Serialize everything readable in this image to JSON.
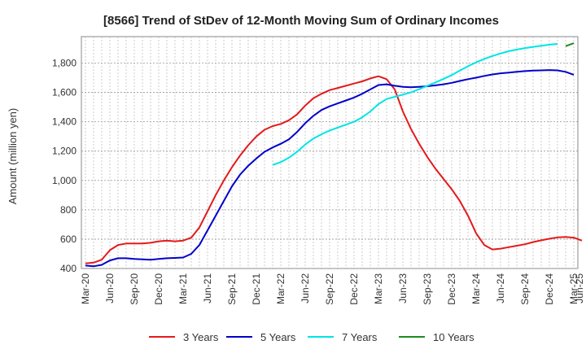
{
  "chart_data": {
    "type": "line",
    "title": "[8566]  Trend of StDev of 12-Month Moving Sum of Ordinary Incomes",
    "ylabel": "Amount (million yen)",
    "xlabel": "",
    "ylim": [
      400,
      1980
    ],
    "yticks": [
      400,
      600,
      800,
      1000,
      1200,
      1400,
      1600,
      1800
    ],
    "ytick_labels": [
      "400",
      "600",
      "800",
      "1,000",
      "1,200",
      "1,400",
      "1,600",
      "1,800"
    ],
    "xlim": [
      0,
      61
    ],
    "x_ticks": [
      {
        "i": 0,
        "label": "Mar-20"
      },
      {
        "i": 3,
        "label": "Jun-20"
      },
      {
        "i": 6,
        "label": "Sep-20"
      },
      {
        "i": 9,
        "label": "Dec-20"
      },
      {
        "i": 12,
        "label": "Mar-21"
      },
      {
        "i": 15,
        "label": "Jun-21"
      },
      {
        "i": 18,
        "label": "Sep-21"
      },
      {
        "i": 21,
        "label": "Dec-21"
      },
      {
        "i": 24,
        "label": "Mar-22"
      },
      {
        "i": 27,
        "label": "Jun-22"
      },
      {
        "i": 30,
        "label": "Sep-22"
      },
      {
        "i": 33,
        "label": "Dec-22"
      },
      {
        "i": 36,
        "label": "Mar-23"
      },
      {
        "i": 39,
        "label": "Jun-23"
      },
      {
        "i": 42,
        "label": "Sep-23"
      },
      {
        "i": 45,
        "label": "Dec-23"
      },
      {
        "i": 48,
        "label": "Mar-24"
      },
      {
        "i": 51,
        "label": "Jun-24"
      },
      {
        "i": 54,
        "label": "Sep-24"
      },
      {
        "i": 57,
        "label": "Dec-24"
      },
      {
        "i": 60,
        "label": "Mar-25"
      },
      {
        "i": 63,
        "label": "Jun-25"
      }
    ],
    "grid": true,
    "legend_position": "bottom",
    "series": [
      {
        "name": "3 Years",
        "color": "#e31a1c",
        "start": 0,
        "values": [
          435,
          440,
          460,
          525,
          560,
          570,
          570,
          570,
          575,
          585,
          590,
          585,
          590,
          610,
          680,
          790,
          900,
          1000,
          1090,
          1170,
          1240,
          1300,
          1345,
          1370,
          1385,
          1410,
          1450,
          1510,
          1560,
          1590,
          1615,
          1630,
          1645,
          1660,
          1675,
          1695,
          1710,
          1690,
          1620,
          1470,
          1350,
          1250,
          1160,
          1080,
          1010,
          940,
          860,
          760,
          640,
          560,
          530,
          535,
          545,
          555,
          565,
          580,
          592,
          603,
          612,
          615,
          610,
          590
        ]
      },
      {
        "name": "5 Years",
        "color": "#0000cc",
        "start": 0,
        "values": [
          420,
          415,
          425,
          455,
          470,
          470,
          465,
          462,
          460,
          465,
          470,
          472,
          475,
          500,
          560,
          660,
          760,
          860,
          960,
          1040,
          1100,
          1150,
          1195,
          1225,
          1250,
          1280,
          1330,
          1390,
          1440,
          1480,
          1505,
          1525,
          1545,
          1565,
          1590,
          1620,
          1650,
          1655,
          1645,
          1638,
          1635,
          1638,
          1642,
          1648,
          1655,
          1665,
          1678,
          1690,
          1700,
          1712,
          1722,
          1730,
          1735,
          1740,
          1745,
          1748,
          1750,
          1752,
          1750,
          1740,
          1720
        ]
      },
      {
        "name": "7 Years",
        "color": "#00e5e5",
        "start": 23,
        "values": [
          1105,
          1125,
          1155,
          1195,
          1245,
          1285,
          1315,
          1340,
          1360,
          1380,
          1400,
          1430,
          1470,
          1520,
          1555,
          1570,
          1585,
          1600,
          1622,
          1645,
          1668,
          1692,
          1718,
          1748,
          1778,
          1805,
          1828,
          1848,
          1865,
          1880,
          1892,
          1902,
          1910,
          1918,
          1925,
          1930
        ]
      },
      {
        "name": "10 Years",
        "color": "#1e8c1e",
        "start": 59,
        "values": [
          1915,
          1935
        ]
      }
    ]
  }
}
